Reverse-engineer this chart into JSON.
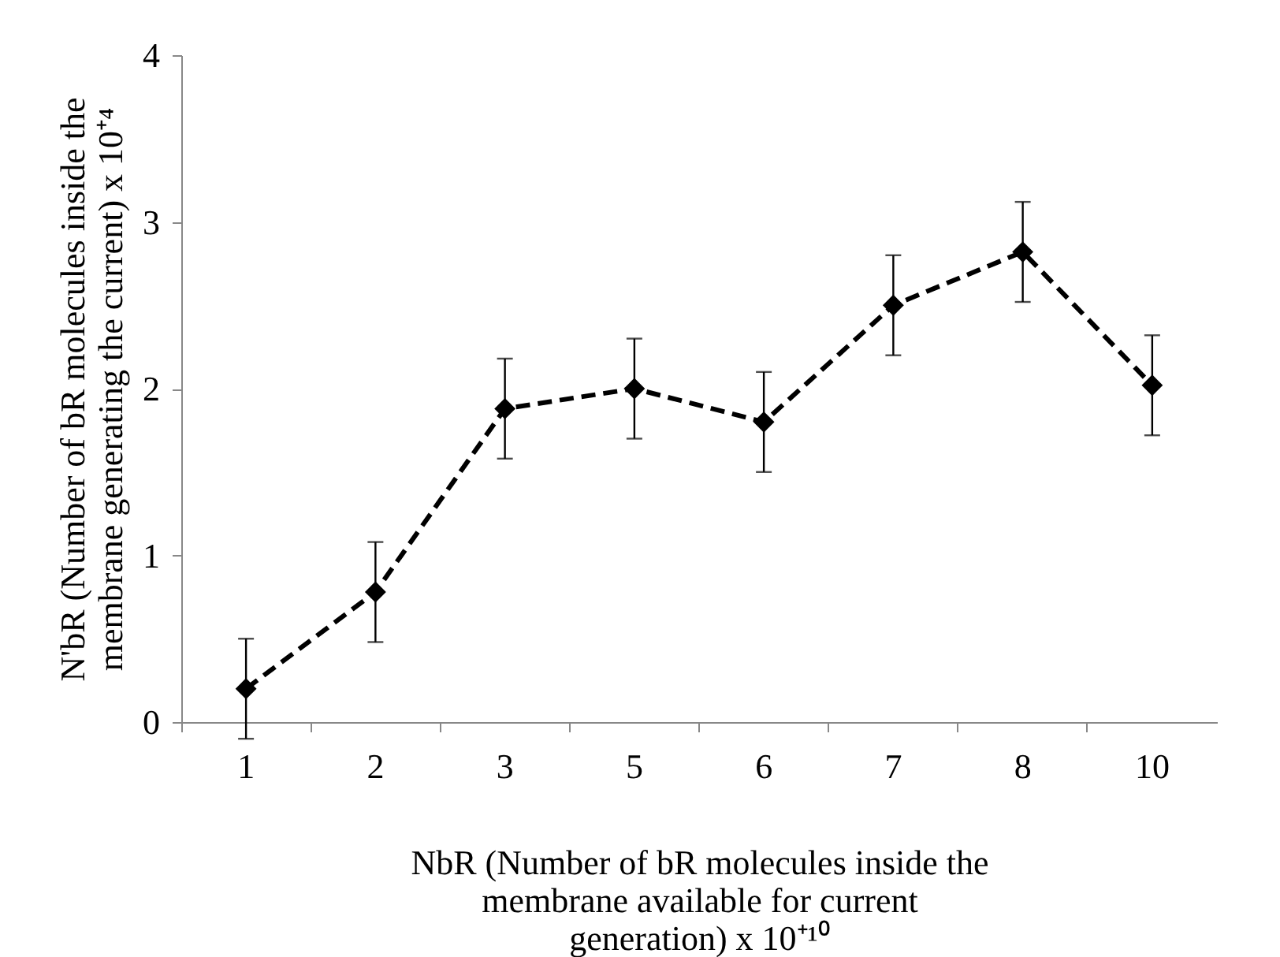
{
  "chart_data": {
    "type": "line",
    "xlabel": "NbR (Number of bR molecules inside the membrane available for current generation) x 10⁺¹⁰",
    "ylabel": "N'bR (Number of bR molecules inside the membrane generating the current) x 10⁺⁴",
    "categories": [
      "1",
      "2",
      "3",
      "5",
      "6",
      "7",
      "8",
      "10"
    ],
    "series": [
      {
        "color": "#000000",
        "values": [
          0.2,
          0.78,
          1.88,
          2.0,
          1.8,
          2.5,
          2.82,
          2.02
        ],
        "errors": [
          0.3,
          0.3,
          0.3,
          0.3,
          0.3,
          0.3,
          0.3,
          0.3
        ]
      }
    ],
    "ylim": [
      0,
      4
    ],
    "yticks": [
      0,
      1,
      2,
      3,
      4
    ],
    "grid": false,
    "marker": "diamond",
    "line_style": "dashed"
  }
}
